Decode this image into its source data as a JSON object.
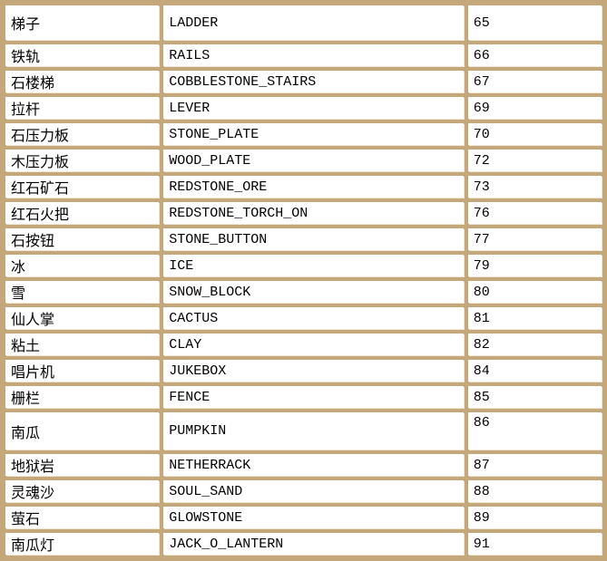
{
  "table": {
    "description": "block-id-reference-table",
    "columns": [
      "chinese_name",
      "english_name",
      "block_id"
    ],
    "rows": [
      {
        "cn": "梯子",
        "en": "LADDER",
        "id": "65",
        "tall": true
      },
      {
        "cn": "铁轨",
        "en": "RAILS",
        "id": "66"
      },
      {
        "cn": "石楼梯",
        "en": "COBBLESTONE_STAIRS",
        "id": "67"
      },
      {
        "cn": "拉杆",
        "en": "LEVER",
        "id": "69"
      },
      {
        "cn": "石压力板",
        "en": "STONE_PLATE",
        "id": "70"
      },
      {
        "cn": "木压力板",
        "en": "WOOD_PLATE",
        "id": "72"
      },
      {
        "cn": "红石矿石",
        "en": "REDSTONE_ORE",
        "id": "73"
      },
      {
        "cn": "红石火把",
        "en": "REDSTONE_TORCH_ON",
        "id": "76"
      },
      {
        "cn": "石按钮",
        "en": "STONE_BUTTON",
        "id": "77"
      },
      {
        "cn": "冰",
        "en": "ICE",
        "id": "79"
      },
      {
        "cn": "雪",
        "en": "SNOW_BLOCK",
        "id": "80"
      },
      {
        "cn": "仙人掌",
        "en": "CACTUS",
        "id": "81"
      },
      {
        "cn": "粘土",
        "en": "CLAY",
        "id": "82"
      },
      {
        "cn": "唱片机",
        "en": "JUKEBOX",
        "id": "84"
      },
      {
        "cn": "栅栏",
        "en": "FENCE",
        "id": "85"
      },
      {
        "cn": "南瓜",
        "en": "PUMPKIN",
        "id": "86",
        "tall": true,
        "id_top": true
      },
      {
        "cn": "地狱岩",
        "en": "NETHERRACK",
        "id": "87"
      },
      {
        "cn": "灵魂沙",
        "en": "SOUL_SAND",
        "id": "88"
      },
      {
        "cn": "萤石",
        "en": "GLOWSTONE",
        "id": "89"
      },
      {
        "cn": "南瓜灯",
        "en": "JACK_O_LANTERN",
        "id": "91"
      }
    ]
  },
  "colors": {
    "grid_border": "#c4a77a",
    "grid_highlight": "#efe7d4",
    "cell_background": "#ffffff",
    "text": "#000000"
  }
}
